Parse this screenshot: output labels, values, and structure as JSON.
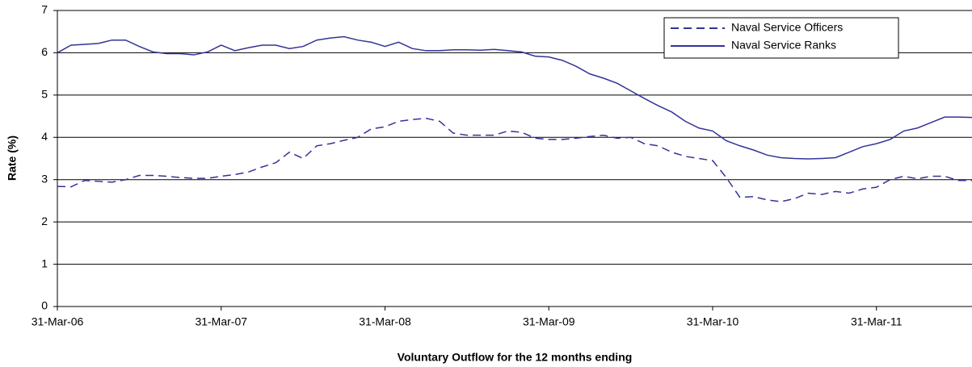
{
  "chart_data": {
    "type": "line",
    "x_label": "Voluntary Outflow for the 12 months ending",
    "y_label": "Rate (%)",
    "categories": [
      "31-Mar-06",
      null,
      null,
      null,
      null,
      null,
      null,
      null,
      null,
      null,
      null,
      null,
      "31-Mar-07",
      null,
      null,
      null,
      null,
      null,
      null,
      null,
      null,
      null,
      null,
      null,
      "31-Mar-08",
      null,
      null,
      null,
      null,
      null,
      null,
      null,
      null,
      null,
      null,
      null,
      "31-Mar-09",
      null,
      null,
      null,
      null,
      null,
      null,
      null,
      null,
      null,
      null,
      null,
      "31-Mar-10",
      null,
      null,
      null,
      null,
      null,
      null,
      null,
      null,
      null,
      null,
      null,
      "31-Mar-11",
      null,
      null,
      null,
      null,
      null,
      null,
      null
    ],
    "series": [
      {
        "name": "Naval Service Officers",
        "color": "#333399",
        "line_style": "dashed",
        "values": [
          2.84,
          2.83,
          2.98,
          2.96,
          2.94,
          3.0,
          3.1,
          3.1,
          3.08,
          3.05,
          3.03,
          3.03,
          3.08,
          3.12,
          3.18,
          3.3,
          3.4,
          3.65,
          3.5,
          3.8,
          3.85,
          3.93,
          4.0,
          4.2,
          4.25,
          4.38,
          4.42,
          4.45,
          4.38,
          4.1,
          4.05,
          4.05,
          4.05,
          4.15,
          4.12,
          3.98,
          3.95,
          3.95,
          3.98,
          4.02,
          4.05,
          3.98,
          4.0,
          3.85,
          3.8,
          3.65,
          3.55,
          3.5,
          3.45,
          3.05,
          2.58,
          2.6,
          2.52,
          2.48,
          2.55,
          2.68,
          2.65,
          2.72,
          2.68,
          2.78,
          2.82,
          3.0,
          3.08,
          3.02,
          3.08,
          3.08,
          2.98,
          2.98
        ]
      },
      {
        "name": "Naval Service Ranks",
        "color": "#333399",
        "line_style": "solid",
        "values": [
          6.0,
          6.18,
          6.2,
          6.22,
          6.3,
          6.3,
          6.15,
          6.02,
          5.98,
          5.98,
          5.95,
          6.02,
          6.18,
          6.05,
          6.12,
          6.18,
          6.18,
          6.1,
          6.15,
          6.3,
          6.35,
          6.38,
          6.3,
          6.25,
          6.15,
          6.25,
          6.1,
          6.05,
          6.05,
          6.07,
          6.07,
          6.06,
          6.08,
          6.05,
          6.02,
          5.92,
          5.9,
          5.82,
          5.68,
          5.5,
          5.4,
          5.28,
          5.1,
          4.92,
          4.75,
          4.6,
          4.38,
          4.22,
          4.15,
          3.92,
          3.8,
          3.7,
          3.58,
          3.52,
          3.5,
          3.49,
          3.5,
          3.52,
          3.65,
          3.78,
          3.85,
          3.95,
          4.15,
          4.22,
          4.35,
          4.48,
          4.48,
          4.47
        ]
      }
    ],
    "ylim": [
      0,
      7
    ],
    "yticks": [
      0,
      1,
      2,
      3,
      4,
      5,
      6,
      7
    ],
    "grid": true,
    "legend": "upper right"
  }
}
